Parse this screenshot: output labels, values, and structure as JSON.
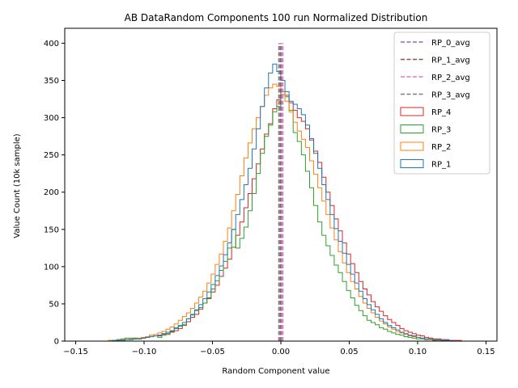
{
  "chart_data": {
    "type": "histogram",
    "title": "AB DataRandom Components 100 run Normalized Distribution",
    "xlabel": "Random Component value",
    "ylabel": "Value Count (10k sample)",
    "xlim": [
      -0.158,
      0.158
    ],
    "ylim": [
      0,
      420
    ],
    "x_ticks": [
      -0.15,
      -0.1,
      -0.05,
      0.0,
      0.05,
      0.1,
      0.15
    ],
    "x_tick_labels": [
      "−0.15",
      "−0.10",
      "−0.05",
      "0.00",
      "0.05",
      "0.10",
      "0.15"
    ],
    "y_ticks": [
      0,
      50,
      100,
      150,
      200,
      250,
      300,
      350,
      400
    ],
    "y_tick_labels": [
      "0",
      "50",
      "100",
      "150",
      "200",
      "250",
      "300",
      "350",
      "400"
    ],
    "grid": false,
    "legend_position": "top-right",
    "bins": {
      "start": -0.15,
      "end": 0.15,
      "count": 100
    },
    "vlines": [
      {
        "name": "RP_0_avg",
        "x": 0.0005,
        "y_max": 400,
        "color": "#9467bd"
      },
      {
        "name": "RP_1_avg",
        "x": -0.0005,
        "y_max": 400,
        "color": "#8c564b"
      },
      {
        "name": "RP_2_avg",
        "x": 0.0015,
        "y_max": 400,
        "color": "#e377c2"
      },
      {
        "name": "RP_3_avg",
        "x": -0.0015,
        "y_max": 400,
        "color": "#7f7f7f"
      }
    ],
    "series": [
      {
        "name": "RP_4",
        "color": "#d62728",
        "values": [
          0,
          0,
          0,
          0,
          0,
          0,
          0,
          0,
          1,
          1,
          1,
          2,
          2,
          2,
          3,
          3,
          4,
          5,
          6,
          7,
          7,
          9,
          10,
          12,
          14,
          17,
          21,
          26,
          32,
          36,
          43,
          51,
          58,
          66,
          75,
          87,
          98,
          110,
          126,
          142,
          160,
          179,
          198,
          218,
          238,
          258,
          278,
          292,
          312,
          324,
          335,
          330,
          320,
          310,
          300,
          295,
          285,
          270,
          255,
          240,
          220,
          200,
          182,
          164,
          148,
          132,
          117,
          104,
          92,
          80,
          70,
          62,
          53,
          46,
          40,
          34,
          29,
          25,
          21,
          17,
          14,
          12,
          10,
          8,
          7,
          5,
          4,
          3,
          3,
          2,
          2,
          1,
          1,
          1,
          0,
          0,
          0,
          0,
          0,
          0
        ]
      },
      {
        "name": "RP_3",
        "color": "#2ca02c",
        "values": [
          0,
          0,
          0,
          0,
          0,
          0,
          0,
          0,
          1,
          1,
          2,
          3,
          4,
          4,
          4,
          3,
          4,
          5,
          8,
          7,
          5,
          8,
          9,
          13,
          18,
          20,
          22,
          30,
          35,
          41,
          45,
          51,
          57,
          70,
          81,
          95,
          107,
          125,
          150,
          125,
          138,
          153,
          175,
          198,
          225,
          252,
          275,
          290,
          308,
          315,
          331,
          328,
          310,
          280,
          268,
          250,
          228,
          206,
          182,
          160,
          142,
          128,
          115,
          102,
          92,
          80,
          68,
          58,
          48,
          41,
          34,
          28,
          25,
          22,
          18,
          16,
          13,
          11,
          9,
          8,
          6,
          5,
          4,
          3,
          3,
          2,
          2,
          1,
          1,
          1,
          1,
          0,
          0,
          0,
          0,
          0,
          0,
          0,
          0,
          0
        ]
      },
      {
        "name": "RP_2",
        "color": "#ff7f0e",
        "values": [
          0,
          0,
          0,
          0,
          0,
          0,
          0,
          0,
          1,
          1,
          1,
          2,
          2,
          3,
          3,
          4,
          5,
          6,
          8,
          9,
          11,
          13,
          16,
          19,
          23,
          28,
          33,
          38,
          44,
          51,
          59,
          67,
          78,
          90,
          103,
          117,
          134,
          152,
          175,
          197,
          222,
          246,
          266,
          285,
          300,
          315,
          330,
          340,
          345,
          342,
          335,
          322,
          308,
          294,
          282,
          271,
          260,
          242,
          224,
          206,
          188,
          170,
          152,
          136,
          120,
          105,
          92,
          80,
          70,
          60,
          51,
          44,
          38,
          32,
          27,
          23,
          19,
          16,
          13,
          11,
          9,
          7,
          6,
          5,
          4,
          3,
          2,
          2,
          1,
          1,
          1,
          0,
          0,
          0,
          0,
          0,
          0,
          0,
          0,
          0
        ]
      },
      {
        "name": "RP_1",
        "color": "#1f77b4",
        "values": [
          0,
          0,
          0,
          0,
          0,
          0,
          0,
          0,
          0,
          1,
          1,
          1,
          2,
          2,
          3,
          3,
          4,
          5,
          6,
          7,
          8,
          10,
          12,
          14,
          17,
          21,
          25,
          30,
          36,
          42,
          49,
          57,
          66,
          76,
          88,
          101,
          116,
          132,
          150,
          170,
          190,
          210,
          232,
          258,
          285,
          315,
          340,
          360,
          372,
          362,
          350,
          335,
          322,
          318,
          312,
          304,
          290,
          272,
          252,
          232,
          210,
          190,
          170,
          151,
          134,
          118,
          103,
          90,
          78,
          67,
          57,
          49,
          42,
          36,
          30,
          25,
          21,
          18,
          15,
          12,
          10,
          8,
          7,
          5,
          4,
          3,
          3,
          2,
          2,
          1,
          1,
          1,
          0,
          0,
          0,
          0,
          0,
          0,
          0,
          0
        ]
      }
    ]
  }
}
